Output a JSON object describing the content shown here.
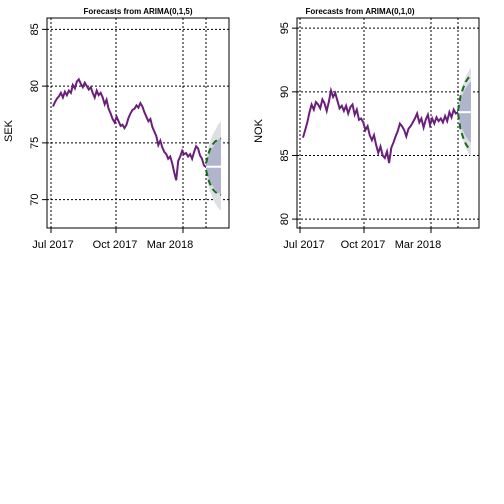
{
  "chart_data": [
    {
      "type": "line",
      "title": "Forecasts from ARIMA(0,1,5)",
      "ylabel": "SEK",
      "xlabel": "",
      "ylim": [
        67.5,
        86
      ],
      "yticks": [
        70,
        75,
        80,
        85
      ],
      "xticks": [
        "Jul 2017",
        "Oct 2017",
        "Mar 2018"
      ],
      "grid": true,
      "series": [
        {
          "values": [
            78.2,
            78.6,
            78.9,
            79.1,
            79.4,
            79.0,
            79.5,
            79.2,
            79.6,
            79.4,
            80.1,
            79.8,
            80.4,
            80.6,
            80.2,
            79.9,
            80.3,
            80.0,
            79.7,
            79.9,
            79.4,
            79.0,
            79.6,
            79.2,
            79.4,
            79.0,
            78.4,
            78.8,
            78.0,
            77.6,
            77.1,
            76.8,
            77.3,
            76.9,
            76.5,
            76.6,
            76.3,
            76.6,
            77.2,
            77.6,
            77.9,
            78.0,
            78.3,
            78.1,
            78.5,
            78.2,
            77.7,
            77.3,
            76.9,
            77.1,
            76.4,
            76.0,
            75.6,
            74.8,
            75.2,
            74.6,
            74.2,
            74.0,
            73.6,
            73.8,
            73.2,
            72.4,
            71.7,
            73.4,
            73.8,
            74.3,
            74.0,
            74.1,
            73.8,
            74.0,
            73.6,
            74.2,
            74.7,
            74.5,
            73.9,
            73.6,
            73.0,
            72.9
          ]
        }
      ],
      "forecast": {
        "point": 72.9,
        "lower_80": [
          72.6,
          71.8,
          71.3,
          70.9,
          70.6,
          70.5
        ],
        "upper_80": [
          73.2,
          74.0,
          74.5,
          74.9,
          75.3,
          75.4
        ],
        "lower_95": [
          72.4,
          71.0,
          70.3,
          69.7,
          69.3,
          69.0
        ],
        "upper_95": [
          73.4,
          74.8,
          75.6,
          76.1,
          76.6,
          76.9
        ],
        "bound_lower": [
          72.6,
          71.6,
          71.0,
          70.7,
          70.5,
          70.4
        ],
        "bound_upper": [
          73.2,
          74.2,
          74.8,
          75.1,
          75.3,
          75.4
        ]
      },
      "colors": {
        "series": "#6b1f7b",
        "band80": "#b0b4cc",
        "band95": "#dcdfe4",
        "point": "#ffffff",
        "bounds": "#1a6b1a"
      }
    },
    {
      "type": "line",
      "title": "Forecasts from ARIMA(0,1,0)",
      "ylabel": "NOK",
      "xlabel": "",
      "ylim": [
        79.3,
        95.8
      ],
      "yticks": [
        80,
        85,
        90,
        95
      ],
      "xticks": [
        "Jul 2017",
        "Oct 2017",
        "Mar 2018"
      ],
      "grid": true,
      "series": [
        {
          "values": [
            86.4,
            87.0,
            87.6,
            88.4,
            89.0,
            88.6,
            89.2,
            89.0,
            88.7,
            89.4,
            89.1,
            88.5,
            89.2,
            90.1,
            89.6,
            89.9,
            89.3,
            88.7,
            88.9,
            88.5,
            88.9,
            88.3,
            88.8,
            89.0,
            88.2,
            88.6,
            87.8,
            87.9,
            87.6,
            87.0,
            87.3,
            86.6,
            86.2,
            86.6,
            85.8,
            85.2,
            85.7,
            85.0,
            84.8,
            85.3,
            84.4,
            85.6,
            86.0,
            86.5,
            86.9,
            87.5,
            87.3,
            87.0,
            86.5,
            87.1,
            87.3,
            87.6,
            87.9,
            88.3,
            87.6,
            87.9,
            87.2,
            87.8,
            88.2,
            87.4,
            87.9,
            87.5,
            88.0,
            87.7,
            87.9,
            87.6,
            88.1,
            87.7,
            88.4,
            88.0,
            88.6,
            88.3,
            88.4
          ]
        }
      ],
      "forecast": {
        "point": 88.4,
        "lower_80": [
          88.2,
          87.4,
          86.9,
          86.5,
          86.2,
          86.0
        ],
        "upper_80": [
          88.6,
          89.4,
          89.9,
          90.3,
          90.6,
          90.8
        ],
        "lower_95": [
          88.0,
          86.8,
          86.2,
          85.6,
          85.2,
          84.9
        ],
        "upper_95": [
          88.8,
          90.0,
          90.6,
          91.2,
          91.6,
          91.9
        ],
        "bound_lower": [
          88.3,
          87.0,
          86.4,
          85.9,
          85.6,
          85.5
        ],
        "bound_upper": [
          88.5,
          89.7,
          90.3,
          90.8,
          91.1,
          91.2
        ]
      },
      "colors": {
        "series": "#6b1f7b",
        "band80": "#b0b4cc",
        "band95": "#dcdfe4",
        "point": "#ffffff",
        "bounds": "#1a6b1a"
      }
    }
  ]
}
